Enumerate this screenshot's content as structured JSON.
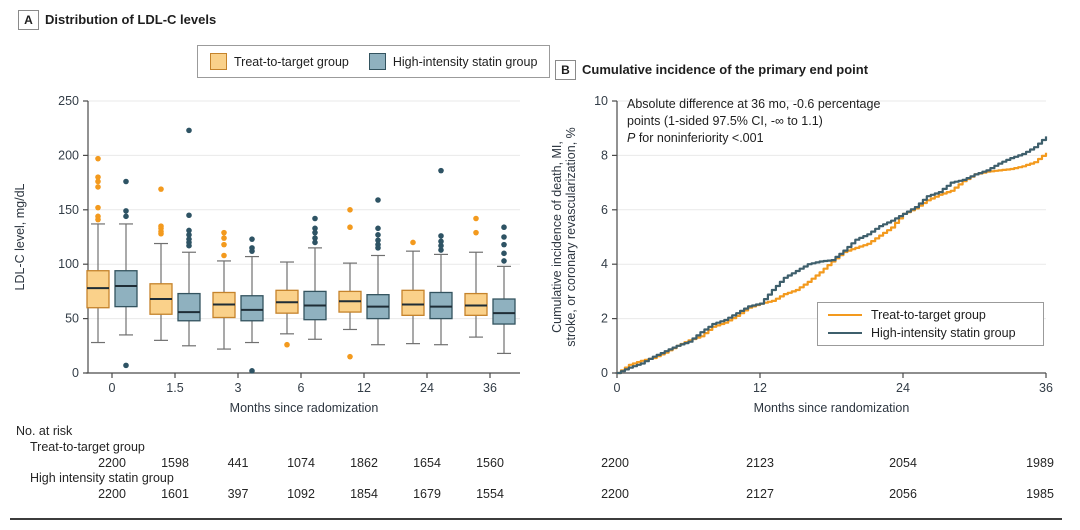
{
  "colors": {
    "orange": "#F39A1E",
    "orange_fill": "#FAD18A",
    "orange_border": "#C5832B",
    "blue": "#3E5F6C",
    "blue_fill": "#8FB1BF",
    "blue_border": "#33535F",
    "blue_dot": "#2E5364",
    "median": "#1F2D36",
    "whisker": "#707070",
    "grid": "#E9E9E9",
    "axis": "#4A4A4A",
    "tick_text": "#333D47"
  },
  "panel_a": {
    "label": "A",
    "title": "Distribution of LDL-C levels",
    "ylabel": "LDL-C level, mg/dL",
    "xlabel": "Months since radomization",
    "legend": [
      {
        "label": "Treat-to-target group"
      },
      {
        "label": "High-intensity statin group"
      }
    ]
  },
  "panel_b": {
    "label": "B",
    "title": "Cumulative incidence of the primary end point",
    "ylabel_line1": "Cumulative incidence of death, MI,",
    "ylabel_line2": "stroke, or coronary revascularization, %",
    "xlabel": "Months since randomization",
    "annotation_line1": "Absolute difference at 36 mo, -0.6 percentage",
    "annotation_line2": "points (1-sided 97.5% CI, -∞ to 1.1)",
    "annotation_line3_prefix": "P",
    "annotation_line3_rest": " for noninferiority <.001",
    "legend": [
      {
        "label": "Treat-to-target group"
      },
      {
        "label": "High-intensity statin group"
      }
    ]
  },
  "risk": {
    "title": "No. at risk",
    "group1_label": "Treat-to-target group",
    "group2_label": "High intensity statin group",
    "a_group1": [
      "2200",
      "1598",
      "441",
      "1074",
      "1862",
      "1654",
      "1560"
    ],
    "a_group2": [
      "2200",
      "1601",
      "397",
      "1092",
      "1854",
      "1679",
      "1554"
    ],
    "b_group1": [
      "2200",
      "2123",
      "2054",
      "1989"
    ],
    "b_group2": [
      "2200",
      "2127",
      "2056",
      "1985"
    ]
  },
  "chart_data": [
    {
      "type": "boxplot",
      "title": "Distribution of LDL-C levels",
      "xlabel": "Months since radomization",
      "ylabel": "LDL-C level, mg/dL",
      "ylim": [
        0,
        250
      ],
      "yticks": [
        0,
        50,
        100,
        150,
        200,
        250
      ],
      "categories": [
        "0",
        "1.5",
        "3",
        "6",
        "12",
        "24",
        "36"
      ],
      "grid": true,
      "series": [
        {
          "name": "Treat-to-target group",
          "boxes": [
            {
              "low": 28,
              "q1": 60,
              "median": 78,
              "q3": 94,
              "high": 137,
              "outliers": [
                141,
                144,
                152,
                171,
                176,
                180,
                197
              ]
            },
            {
              "low": 30,
              "q1": 54,
              "median": 68,
              "q3": 82,
              "high": 119,
              "outliers": [
                128,
                130,
                133,
                135,
                169
              ]
            },
            {
              "low": 22,
              "q1": 51,
              "median": 63,
              "q3": 74,
              "high": 103,
              "outliers": [
                108,
                118,
                124,
                129
              ]
            },
            {
              "low": 36,
              "q1": 55,
              "median": 65,
              "q3": 76,
              "high": 102,
              "outliers": [
                26
              ]
            },
            {
              "low": 40,
              "q1": 56,
              "median": 66,
              "q3": 75,
              "high": 101,
              "outliers": [
                15,
                134,
                150
              ]
            },
            {
              "low": 27,
              "q1": 53,
              "median": 63,
              "q3": 76,
              "high": 112,
              "outliers": [
                120
              ]
            },
            {
              "low": 33,
              "q1": 53,
              "median": 62,
              "q3": 73,
              "high": 111,
              "outliers": [
                129,
                142
              ]
            }
          ]
        },
        {
          "name": "High-intensity statin group",
          "boxes": [
            {
              "low": 35,
              "q1": 61,
              "median": 80,
              "q3": 94,
              "high": 137,
              "outliers": [
                7,
                144,
                149,
                176
              ]
            },
            {
              "low": 25,
              "q1": 48,
              "median": 56,
              "q3": 73,
              "high": 111,
              "outliers": [
                117,
                120,
                123,
                127,
                131,
                145,
                223
              ]
            },
            {
              "low": 28,
              "q1": 48,
              "median": 58,
              "q3": 71,
              "high": 107,
              "outliers": [
                2,
                112,
                115,
                123
              ]
            },
            {
              "low": 31,
              "q1": 49,
              "median": 62,
              "q3": 75,
              "high": 115,
              "outliers": [
                120,
                124,
                129,
                133,
                142
              ]
            },
            {
              "low": 26,
              "q1": 50,
              "median": 61,
              "q3": 72,
              "high": 108,
              "outliers": [
                115,
                118,
                122,
                127,
                133,
                159
              ]
            },
            {
              "low": 26,
              "q1": 50,
              "median": 61,
              "q3": 74,
              "high": 109,
              "outliers": [
                113,
                117,
                121,
                126,
                186
              ]
            },
            {
              "low": 18,
              "q1": 45,
              "median": 55,
              "q3": 68,
              "high": 98,
              "outliers": [
                103,
                110,
                118,
                125,
                134
              ]
            }
          ]
        }
      ]
    },
    {
      "type": "line",
      "title": "Cumulative incidence of the primary end point",
      "xlabel": "Months since randomization",
      "ylabel": "Cumulative incidence of death, MI, stroke, or coronary revascularization, %",
      "xlim": [
        0,
        36
      ],
      "ylim": [
        0,
        10
      ],
      "xticks": [
        0,
        12,
        24,
        36
      ],
      "yticks": [
        0,
        2,
        4,
        6,
        8,
        10
      ],
      "grid": true,
      "legend_position": "lower-right",
      "annotation": "Absolute difference at 36 mo, -0.6 percentage points (1-sided 97.5% CI, -∞ to 1.1); P for noninferiority <.001",
      "x": [
        0,
        1,
        2,
        3,
        4,
        5,
        6,
        7,
        8,
        9,
        10,
        11,
        12,
        13,
        14,
        15,
        16,
        17,
        18,
        19,
        20,
        21,
        22,
        23,
        24,
        25,
        26,
        27,
        28,
        29,
        30,
        31,
        32,
        33,
        34,
        35,
        36
      ],
      "series": [
        {
          "name": "Treat-to-target group",
          "values": [
            0,
            0.3,
            0.45,
            0.55,
            0.75,
            1.0,
            1.2,
            1.35,
            1.7,
            1.85,
            2.1,
            2.4,
            2.55,
            2.65,
            2.9,
            3.05,
            3.35,
            3.7,
            4.1,
            4.45,
            4.6,
            4.75,
            5.05,
            5.35,
            5.85,
            6.05,
            6.35,
            6.55,
            6.7,
            7.05,
            7.3,
            7.4,
            7.45,
            7.5,
            7.6,
            7.75,
            8.1
          ]
        },
        {
          "name": "High-intensity statin group",
          "values": [
            0,
            0.2,
            0.35,
            0.6,
            0.8,
            1.0,
            1.15,
            1.5,
            1.8,
            1.95,
            2.2,
            2.45,
            2.55,
            3.05,
            3.5,
            3.75,
            4.0,
            4.1,
            4.15,
            4.5,
            4.9,
            5.1,
            5.4,
            5.6,
            5.85,
            6.1,
            6.5,
            6.65,
            7.0,
            7.1,
            7.3,
            7.45,
            7.7,
            7.9,
            8.05,
            8.3,
            8.7
          ]
        }
      ]
    }
  ]
}
